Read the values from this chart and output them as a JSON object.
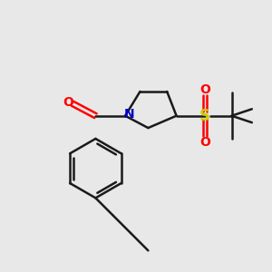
{
  "bg_color": "#e8e8e8",
  "bond_color": "#1a1a1a",
  "N_color": "#0000cc",
  "O_color": "#ff0000",
  "S_color": "#cccc00",
  "line_width": 1.8,
  "figsize": [
    3.0,
    3.0
  ],
  "dpi": 100,
  "xlim": [
    0,
    10
  ],
  "ylim": [
    0,
    10
  ]
}
